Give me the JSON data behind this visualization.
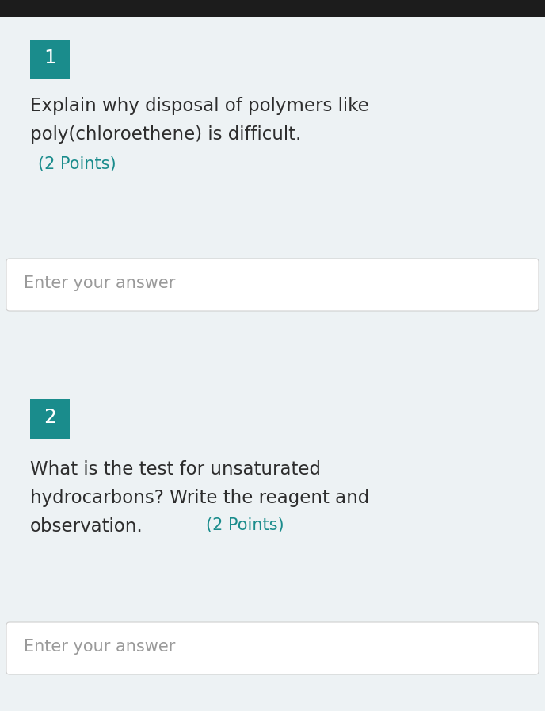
{
  "bg_top_bar_color": "#1c1c1c",
  "bg_main_color": "#edf2f4",
  "bg_answer_box_color": "#ffffff",
  "teal_color": "#1a8c8c",
  "text_color_dark": "#2d2d2d",
  "teal_text_color": "#1a8c8c",
  "answer_text_color": "#9a9a9a",
  "q1_number": "1",
  "q1_line1": "Explain why disposal of polymers like",
  "q1_line2": "poly(chloroethene) is difficult.",
  "q1_points": "(2 Points)",
  "answer_placeholder": "Enter your answer",
  "q2_number": "2",
  "q2_line1": "What is the test for unsaturated",
  "q2_line2": "hydrocarbons? Write the reagent and",
  "q2_line3": "observation.",
  "q2_points": "(2 Points)",
  "figwidth": 6.88,
  "figheight": 8.96,
  "dpi": 100
}
